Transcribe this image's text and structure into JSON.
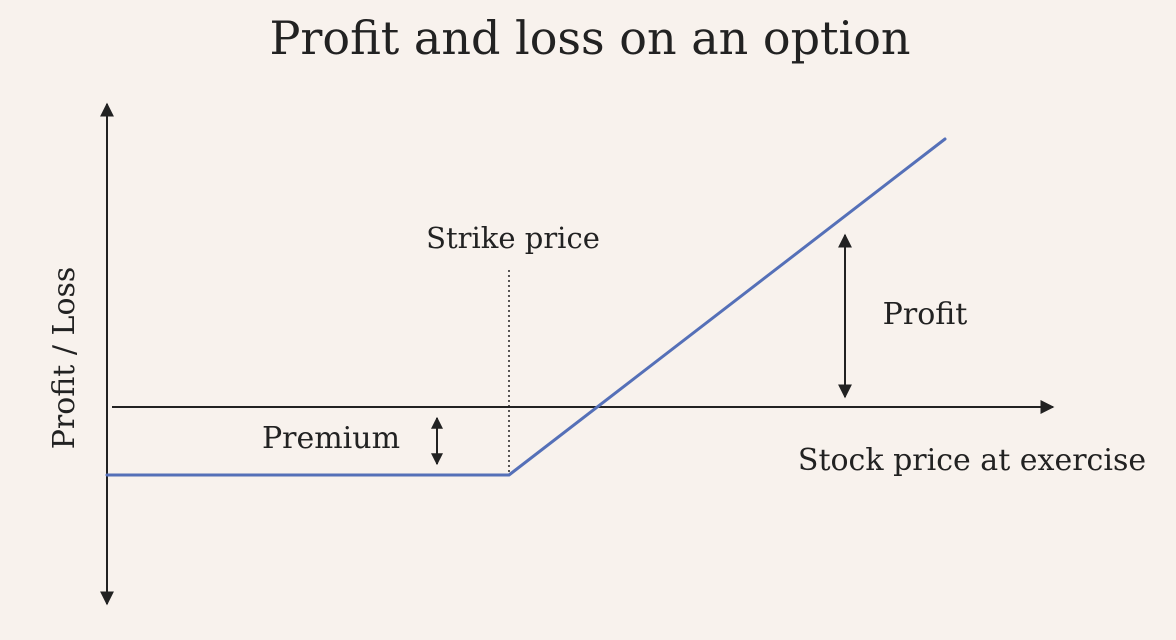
{
  "title": "Profit and loss on an option",
  "labels": {
    "y_axis": "Profit / Loss",
    "x_axis": "Stock price at exercise",
    "strike": "Strike price",
    "premium": "Premium",
    "profit": "Profit"
  },
  "colors": {
    "background": "#f8f2ed",
    "payoff_line": "#5570b8",
    "axes": "#222222"
  }
}
